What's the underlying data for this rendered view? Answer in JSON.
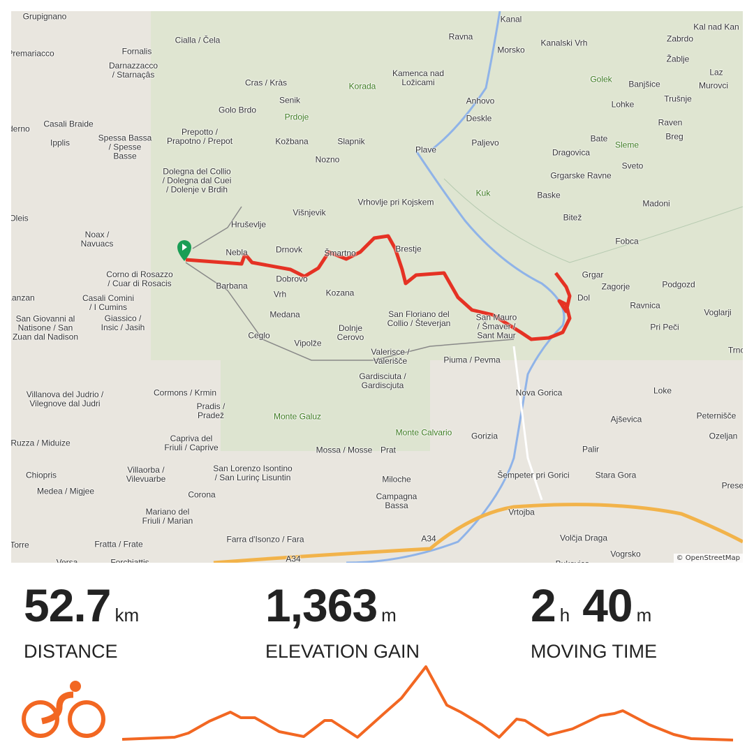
{
  "map": {
    "attribution": "© OpenStreetMap",
    "route_color": "#e53224",
    "labels": [
      "Grupignano",
      "Fornalis",
      "Darnazzacco\n/ Starnaçâs",
      "Cialla / Čela",
      "Ravna",
      "Kanal",
      "Kal nad Kan",
      "Zabrdo",
      "Morsko",
      "Kanalski Vrh",
      "Žablje",
      "Laz",
      "Kamenca nad\nLožicami",
      "Cras / Kràs",
      "Korada",
      "Golek",
      "Banjšice",
      "Murovci",
      "Lohke",
      "Trušnje",
      "Senik",
      "Anhovo",
      "Golo Brdo",
      "Prdoje",
      "Casali Braide",
      "Ipplis",
      "Deskle",
      "Raven",
      "Breg",
      "Prepotto /\nPrapotno / Prepot",
      "Kožbana",
      "Slapnik",
      "Bate",
      "Sleme",
      "Spessa Bassa\n/ Spesse\nBasse",
      "Plave",
      "Paljevo",
      "Nozno",
      "Dragovica",
      "Sveto",
      "Dolegna del Collio\n/ Dolegna dal Cuei\n/ Dolenje v Brdih",
      "Grgarske Ravne",
      "Kuk",
      "Baske",
      "Madoni",
      "Vrhovlje pri Kojskem",
      "Višnjevik",
      "Oleis",
      "Hruševlje",
      "Bitež",
      "Noax /\nNavuacs",
      "Nebla",
      "Drnovk",
      "Šmartno",
      "Brestje",
      "Fobca",
      "Corno di Rosazzo\n/ Cuar di Rosacis",
      "Grgar",
      "Dobrovo",
      "Barbana",
      "Vrh",
      "Kozana",
      "Dol",
      "Zagorje",
      "Podgozd",
      "Casali Comini\n/ I Cumins",
      "Medana",
      "San Floriano del\nCollio / Števerjan",
      "Ravnica",
      "Voglarji",
      "San Giovanni al\nNatisone / San\nZuan dal Nadison",
      "Ceglo",
      "Vipolže",
      "Dolnje\nCerovo",
      "San Mauro\n/ Šmaver /\nSant Maur",
      "Giassico /\nInsic / Jasih",
      "Pri Peči",
      "Trnov",
      "Valerisce /\nValerišče",
      "Piuma / Pevma",
      "Gardisciuta /\nGardiscjuta",
      "Nova Gorica",
      "Loke",
      "Villanova del Judrio /\nVilegnove dal Judri",
      "Cormons / Krmin",
      "Pradis /\nPradež",
      "Monte Galuz",
      "Peternišče",
      "Ajševica",
      "Monte Calvario",
      "Gorizia",
      "Ozeljan",
      "Capriva del\nFriuli / Caprive",
      "Mossa / Mosse",
      "Prat",
      "Palir",
      "Miloche",
      "Šempeter pri Gorici",
      "Stara Gora",
      "San Lorenzo Isontino\n/ San Lurinç Lisuntin",
      "Chiopris",
      "Villaorba /\nVilevuarbe",
      "Corona",
      "Campagna\nBassa",
      "Medea / Migjee",
      "Mariano del\nFriuli / Marian",
      "Vrtojba",
      "A34",
      "Fratta / Frate",
      "Farra d'Isonzo / Fara",
      "Volčja Draga",
      "Vogrsko",
      "Versa",
      "Forchiattis",
      "Bukovica",
      "A34",
      "Preserje",
      "Premariacco",
      "Paderno",
      "Lanzan",
      "Ruzza / Miduize",
      "Torre"
    ]
  },
  "stats": [
    {
      "value": "52.7",
      "unit": "km",
      "label": "DISTANCE"
    },
    {
      "value": "1,363",
      "unit": "m",
      "label": "ELEVATION GAIN"
    },
    {
      "value_h": "2",
      "unit_h": "h",
      "value_m": "40",
      "unit_m": "m",
      "label": "MOVING TIME"
    }
  ],
  "activity_icon": "cycling-icon",
  "accent": "#f26722"
}
